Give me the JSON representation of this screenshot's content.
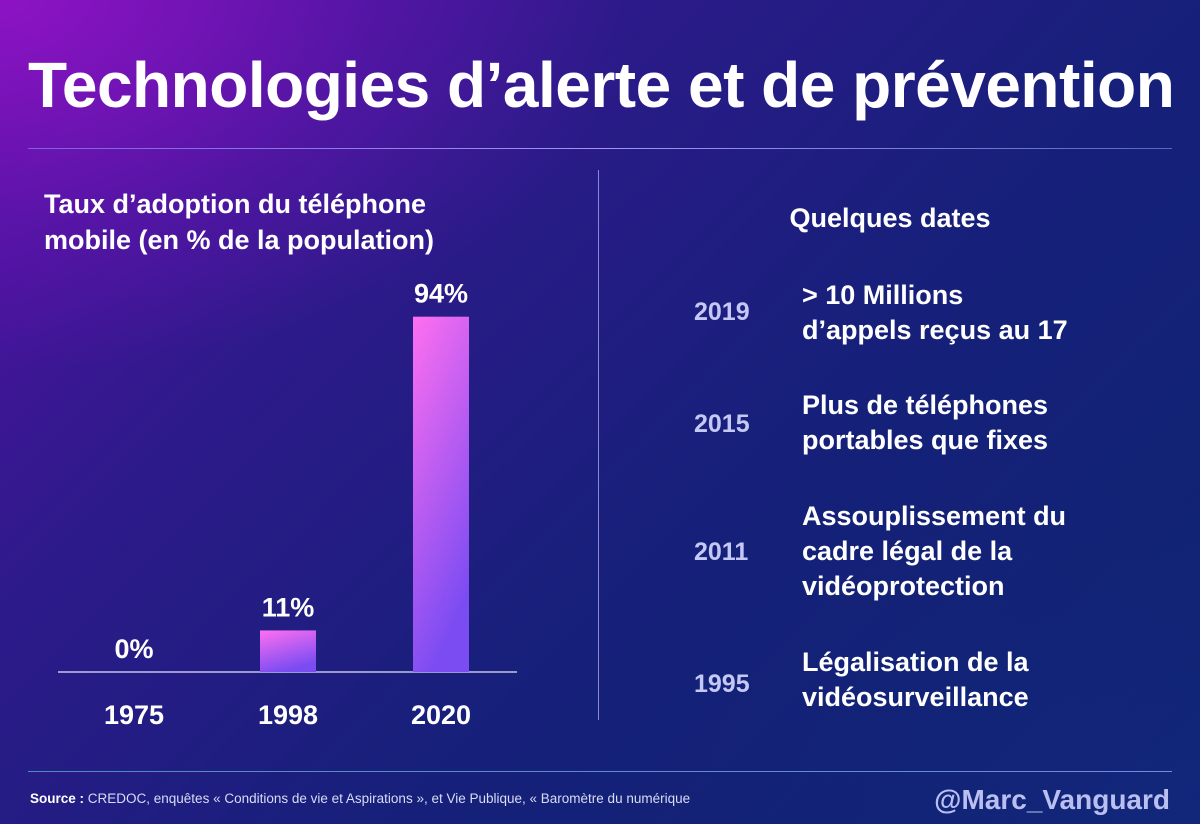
{
  "title": "Technologies d’alerte et de prévention",
  "chart_data": {
    "type": "bar",
    "title_lines": [
      "Taux d’adoption du téléphone",
      "mobile (en % de la population)"
    ],
    "categories": [
      "1975",
      "1998",
      "2020"
    ],
    "values": [
      0,
      11,
      94
    ],
    "value_labels": [
      "0%",
      "11%",
      "94%"
    ],
    "ylim": [
      0,
      100
    ],
    "grid": false,
    "bar_gradient": [
      "#ff6ff0",
      "#7b4cf2"
    ]
  },
  "timeline": {
    "title": "Quelques dates",
    "events": [
      {
        "year": "2019",
        "lines": [
          "> 10 Millions",
          "d’appels reçus au 17"
        ]
      },
      {
        "year": "2015",
        "lines": [
          "Plus de téléphones",
          "portables que fixes"
        ]
      },
      {
        "year": "2011",
        "lines": [
          "Assouplissement du",
          "cadre légal de la",
          "vidéoprotection"
        ]
      },
      {
        "year": "1995",
        "lines": [
          "Légalisation de la",
          "vidéosurveillance"
        ]
      }
    ]
  },
  "footer": {
    "source_label": "Source :",
    "source_text": " CREDOC, enquêtes « Conditions de vie et Aspirations », et Vie Publique, « Baromètre du numérique",
    "handle": "@Marc_Vanguard"
  }
}
